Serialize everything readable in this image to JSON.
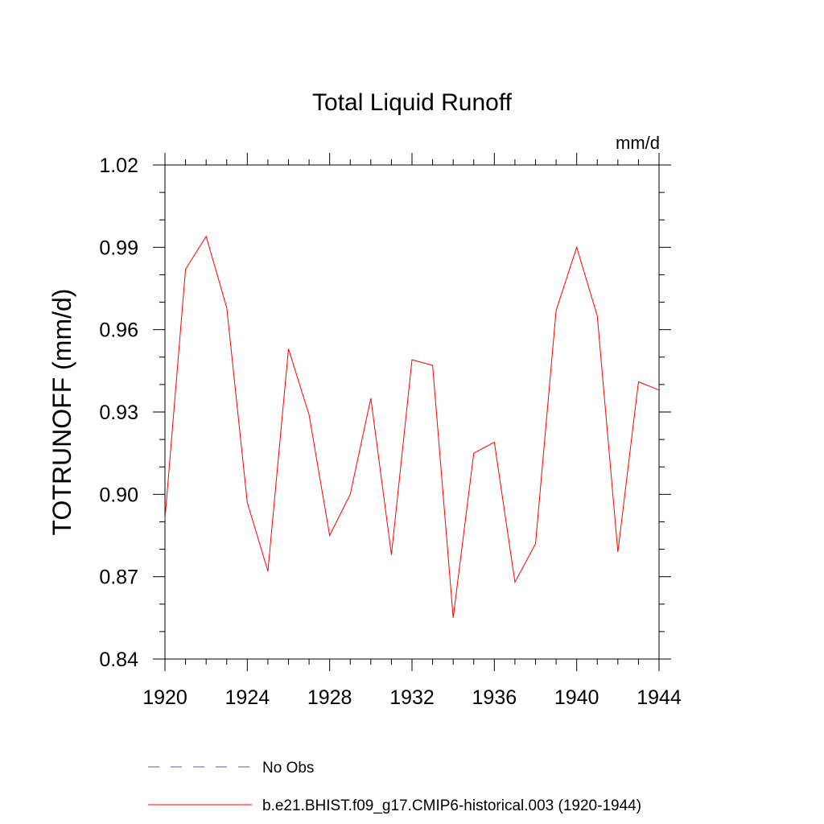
{
  "chart_data": {
    "type": "line",
    "title": "Total Liquid Runoff",
    "units_label": "mm/d",
    "ylabel": "TOTRUNOFF  (mm/d)",
    "xlabel": "",
    "xlim": [
      1920,
      1944
    ],
    "ylim": [
      0.84,
      1.02
    ],
    "x_ticks": [
      1920,
      1924,
      1928,
      1932,
      1936,
      1940,
      1944
    ],
    "x_tick_labels": [
      "1920",
      "1924",
      "1928",
      "1932",
      "1936",
      "1940",
      "1944"
    ],
    "y_ticks": [
      0.84,
      0.87,
      0.9,
      0.93,
      0.96,
      0.99,
      1.02
    ],
    "y_tick_labels": [
      "0.84",
      "0.87",
      "0.90",
      "0.93",
      "0.96",
      "0.99",
      "1.02"
    ],
    "x_minor_step": 1,
    "y_minor_step": 0.01,
    "grid": false,
    "legend_position": "bottom",
    "x": [
      1920,
      1921,
      1922,
      1923,
      1924,
      1925,
      1926,
      1927,
      1928,
      1929,
      1930,
      1931,
      1932,
      1933,
      1934,
      1935,
      1936,
      1937,
      1938,
      1939,
      1940,
      1941,
      1942,
      1943,
      1944
    ],
    "series": [
      {
        "name": "b.e21.BHIST.f09_g17.CMIP6-historical.003 (1920-1944)",
        "color": "#ff0000",
        "style": "solid",
        "values": [
          0.891,
          0.982,
          0.994,
          0.968,
          0.897,
          0.872,
          0.953,
          0.929,
          0.885,
          0.9,
          0.935,
          0.878,
          0.949,
          0.947,
          0.855,
          0.915,
          0.919,
          0.868,
          0.882,
          0.967,
          0.99,
          0.965,
          0.879,
          0.941,
          0.938
        ]
      }
    ],
    "legend": [
      {
        "label": "No Obs",
        "color": "#5a5aa8",
        "style": "dashed"
      },
      {
        "label": "b.e21.BHIST.f09_g17.CMIP6-historical.003 (1920-1944)",
        "color": "#ff0000",
        "style": "solid"
      }
    ]
  }
}
